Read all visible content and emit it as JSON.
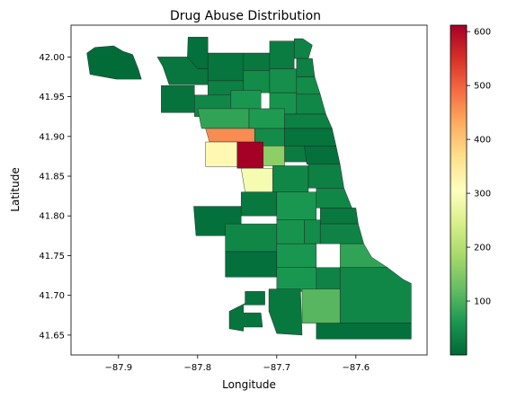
{
  "chart_data": {
    "type": "choropleth",
    "title": "Drug Abuse Distribution",
    "xlabel": "Longitude",
    "ylabel": "Latitude",
    "xlim": [
      -87.96,
      -87.51
    ],
    "ylim": [
      41.625,
      42.04
    ],
    "x_ticks": [
      -87.9,
      -87.8,
      -87.7,
      -87.6
    ],
    "y_ticks": [
      41.65,
      41.7,
      41.75,
      41.8,
      41.85,
      41.9,
      41.95,
      42.0
    ],
    "colorbar": {
      "colormap": "RdYlGn_r",
      "range": [
        0,
        612
      ],
      "ticks": [
        100,
        200,
        300,
        400,
        500,
        600
      ]
    },
    "regions": [
      {
        "id": "ohare",
        "value": 5,
        "poly": [
          [
            -87.94,
            42.005
          ],
          [
            -87.93,
            42.012
          ],
          [
            -87.906,
            42.014
          ],
          [
            -87.894,
            42.007
          ],
          [
            -87.882,
            42.003
          ],
          [
            -87.875,
            41.985
          ],
          [
            -87.871,
            41.972
          ],
          [
            -87.903,
            41.972
          ],
          [
            -87.936,
            41.978
          ]
        ]
      },
      {
        "id": "edison-park",
        "value": 10,
        "poly": [
          [
            -87.812,
            42.025
          ],
          [
            -87.787,
            42.025
          ],
          [
            -87.787,
            41.985
          ],
          [
            -87.8,
            41.985
          ],
          [
            -87.813,
            42.0
          ]
        ]
      },
      {
        "id": "norwood-park",
        "value": 18,
        "poly": [
          [
            -87.851,
            42.0
          ],
          [
            -87.813,
            42.0
          ],
          [
            -87.8,
            41.985
          ],
          [
            -87.787,
            41.985
          ],
          [
            -87.787,
            41.965
          ],
          [
            -87.836,
            41.965
          ],
          [
            -87.844,
            41.988
          ]
        ]
      },
      {
        "id": "dunning",
        "value": 14,
        "poly": [
          [
            -87.846,
            41.964
          ],
          [
            -87.804,
            41.964
          ],
          [
            -87.804,
            41.93
          ],
          [
            -87.846,
            41.93
          ]
        ]
      },
      {
        "id": "forest-glen",
        "value": 16,
        "poly": [
          [
            -87.787,
            42.005
          ],
          [
            -87.742,
            42.005
          ],
          [
            -87.742,
            41.97
          ],
          [
            -87.787,
            41.97
          ]
        ]
      },
      {
        "id": "sauganash",
        "value": 20,
        "poly": [
          [
            -87.742,
            42.005
          ],
          [
            -87.709,
            42.005
          ],
          [
            -87.709,
            41.983
          ],
          [
            -87.742,
            41.983
          ]
        ]
      },
      {
        "id": "west-ridge",
        "value": 25,
        "poly": [
          [
            -87.709,
            42.02
          ],
          [
            -87.678,
            42.02
          ],
          [
            -87.678,
            41.985
          ],
          [
            -87.709,
            41.985
          ]
        ]
      },
      {
        "id": "rogers-park",
        "value": 35,
        "poly": [
          [
            -87.678,
            42.023
          ],
          [
            -87.667,
            42.023
          ],
          [
            -87.655,
            42.015
          ],
          [
            -87.66,
            41.998
          ],
          [
            -87.678,
            41.998
          ]
        ]
      },
      {
        "id": "jefferson-park",
        "value": 30,
        "poly": [
          [
            -87.787,
            41.97
          ],
          [
            -87.742,
            41.97
          ],
          [
            -87.742,
            41.95
          ],
          [
            -87.787,
            41.95
          ]
        ]
      },
      {
        "id": "portage-park",
        "value": 40,
        "poly": [
          [
            -87.804,
            41.952
          ],
          [
            -87.758,
            41.952
          ],
          [
            -87.758,
            41.925
          ],
          [
            -87.804,
            41.925
          ]
        ]
      },
      {
        "id": "albany-park",
        "value": 45,
        "poly": [
          [
            -87.742,
            41.983
          ],
          [
            -87.709,
            41.983
          ],
          [
            -87.709,
            41.955
          ],
          [
            -87.742,
            41.955
          ]
        ]
      },
      {
        "id": "irving-park",
        "value": 60,
        "poly": [
          [
            -87.758,
            41.958
          ],
          [
            -87.72,
            41.958
          ],
          [
            -87.72,
            41.93
          ],
          [
            -87.758,
            41.93
          ]
        ]
      },
      {
        "id": "lincoln-square",
        "value": 50,
        "poly": [
          [
            -87.709,
            41.985
          ],
          [
            -87.675,
            41.985
          ],
          [
            -87.675,
            41.955
          ],
          [
            -87.709,
            41.955
          ]
        ]
      },
      {
        "id": "edgewater",
        "value": 30,
        "poly": [
          [
            -87.675,
            41.998
          ],
          [
            -87.655,
            41.998
          ],
          [
            -87.652,
            41.975
          ],
          [
            -87.675,
            41.975
          ]
        ]
      },
      {
        "id": "uptown",
        "value": 45,
        "poly": [
          [
            -87.675,
            41.975
          ],
          [
            -87.652,
            41.975
          ],
          [
            -87.645,
            41.953
          ],
          [
            -87.675,
            41.953
          ]
        ]
      },
      {
        "id": "north-center",
        "value": 55,
        "poly": [
          [
            -87.709,
            41.955
          ],
          [
            -87.675,
            41.955
          ],
          [
            -87.675,
            41.928
          ],
          [
            -87.709,
            41.928
          ]
        ]
      },
      {
        "id": "lakeview",
        "value": 40,
        "poly": [
          [
            -87.675,
            41.953
          ],
          [
            -87.645,
            41.953
          ],
          [
            -87.638,
            41.928
          ],
          [
            -87.675,
            41.928
          ]
        ]
      },
      {
        "id": "belmont-cragin",
        "value": 80,
        "poly": [
          [
            -87.8,
            41.935
          ],
          [
            -87.735,
            41.935
          ],
          [
            -87.735,
            41.91
          ],
          [
            -87.795,
            41.91
          ]
        ]
      },
      {
        "id": "logan-square",
        "value": 65,
        "poly": [
          [
            -87.735,
            41.935
          ],
          [
            -87.69,
            41.935
          ],
          [
            -87.69,
            41.91
          ],
          [
            -87.735,
            41.91
          ]
        ]
      },
      {
        "id": "lincoln-park",
        "value": 30,
        "poly": [
          [
            -87.69,
            41.928
          ],
          [
            -87.638,
            41.928
          ],
          [
            -87.63,
            41.91
          ],
          [
            -87.69,
            41.91
          ]
        ]
      },
      {
        "id": "austin",
        "value": 460,
        "poly": [
          [
            -87.79,
            41.91
          ],
          [
            -87.728,
            41.91
          ],
          [
            -87.728,
            41.893
          ],
          [
            -87.785,
            41.893
          ]
        ]
      },
      {
        "id": "west-town",
        "value": 45,
        "poly": [
          [
            -87.728,
            41.91
          ],
          [
            -87.69,
            41.91
          ],
          [
            -87.69,
            41.885
          ],
          [
            -87.728,
            41.885
          ]
        ]
      },
      {
        "id": "near-north",
        "value": 15,
        "poly": [
          [
            -87.69,
            41.91
          ],
          [
            -87.63,
            41.91
          ],
          [
            -87.625,
            41.888
          ],
          [
            -87.69,
            41.888
          ]
        ]
      },
      {
        "id": "austin-south",
        "value": 320,
        "poly": [
          [
            -87.79,
            41.893
          ],
          [
            -87.75,
            41.893
          ],
          [
            -87.75,
            41.862
          ],
          [
            -87.79,
            41.862
          ]
        ]
      },
      {
        "id": "west-garfield-park",
        "value": 612,
        "poly": [
          [
            -87.75,
            41.893
          ],
          [
            -87.717,
            41.893
          ],
          [
            -87.717,
            41.86
          ],
          [
            -87.75,
            41.86
          ]
        ]
      },
      {
        "id": "east-garfield-park",
        "value": 160,
        "poly": [
          [
            -87.717,
            41.888
          ],
          [
            -87.69,
            41.888
          ],
          [
            -87.69,
            41.863
          ],
          [
            -87.717,
            41.863
          ]
        ]
      },
      {
        "id": "near-west-side",
        "value": 25,
        "poly": [
          [
            -87.69,
            41.888
          ],
          [
            -87.665,
            41.888
          ],
          [
            -87.662,
            41.868
          ],
          [
            -87.69,
            41.868
          ]
        ]
      },
      {
        "id": "loop",
        "value": 10,
        "poly": [
          [
            -87.665,
            41.888
          ],
          [
            -87.625,
            41.888
          ],
          [
            -87.62,
            41.865
          ],
          [
            -87.662,
            41.865
          ]
        ]
      },
      {
        "id": "north-lawndale",
        "value": 290,
        "poly": [
          [
            -87.745,
            41.86
          ],
          [
            -87.705,
            41.86
          ],
          [
            -87.705,
            41.83
          ],
          [
            -87.74,
            41.83
          ]
        ]
      },
      {
        "id": "lower-west-side",
        "value": 40,
        "poly": [
          [
            -87.705,
            41.863
          ],
          [
            -87.66,
            41.863
          ],
          [
            -87.66,
            41.83
          ],
          [
            -87.705,
            41.83
          ]
        ]
      },
      {
        "id": "near-south-side",
        "value": 30,
        "poly": [
          [
            -87.66,
            41.865
          ],
          [
            -87.62,
            41.865
          ],
          [
            -87.615,
            41.835
          ],
          [
            -87.66,
            41.835
          ]
        ]
      },
      {
        "id": "archer-heights",
        "value": 20,
        "poly": [
          [
            -87.745,
            41.83
          ],
          [
            -87.7,
            41.83
          ],
          [
            -87.7,
            41.8
          ],
          [
            -87.745,
            41.8
          ]
        ]
      },
      {
        "id": "mckinley-park",
        "value": 60,
        "poly": [
          [
            -87.7,
            41.83
          ],
          [
            -87.65,
            41.83
          ],
          [
            -87.65,
            41.795
          ],
          [
            -87.7,
            41.795
          ]
        ]
      },
      {
        "id": "douglas",
        "value": 40,
        "poly": [
          [
            -87.65,
            41.835
          ],
          [
            -87.615,
            41.835
          ],
          [
            -87.605,
            41.81
          ],
          [
            -87.65,
            41.81
          ]
        ]
      },
      {
        "id": "garfield-ridge",
        "value": 10,
        "poly": [
          [
            -87.805,
            41.812
          ],
          [
            -87.745,
            41.812
          ],
          [
            -87.745,
            41.775
          ],
          [
            -87.802,
            41.775
          ]
        ]
      },
      {
        "id": "new-city",
        "value": 55,
        "poly": [
          [
            -87.7,
            41.795
          ],
          [
            -87.665,
            41.795
          ],
          [
            -87.665,
            41.765
          ],
          [
            -87.7,
            41.765
          ]
        ]
      },
      {
        "id": "fuller-park",
        "value": 45,
        "poly": [
          [
            -87.665,
            41.795
          ],
          [
            -87.645,
            41.795
          ],
          [
            -87.645,
            41.765
          ],
          [
            -87.665,
            41.765
          ]
        ]
      },
      {
        "id": "kenwood",
        "value": 20,
        "poly": [
          [
            -87.645,
            41.81
          ],
          [
            -87.6,
            41.81
          ],
          [
            -87.597,
            41.79
          ],
          [
            -87.645,
            41.79
          ]
        ]
      },
      {
        "id": "west-lawn",
        "value": 40,
        "poly": [
          [
            -87.765,
            41.79
          ],
          [
            -87.7,
            41.79
          ],
          [
            -87.7,
            41.755
          ],
          [
            -87.765,
            41.755
          ]
        ]
      },
      {
        "id": "englewood",
        "value": 60,
        "poly": [
          [
            -87.7,
            41.765
          ],
          [
            -87.65,
            41.765
          ],
          [
            -87.65,
            41.735
          ],
          [
            -87.7,
            41.735
          ]
        ]
      },
      {
        "id": "woodlawn",
        "value": 35,
        "poly": [
          [
            -87.645,
            41.79
          ],
          [
            -87.597,
            41.79
          ],
          [
            -87.59,
            41.765
          ],
          [
            -87.645,
            41.765
          ]
        ]
      },
      {
        "id": "south-shore",
        "value": 80,
        "poly": [
          [
            -87.62,
            41.765
          ],
          [
            -87.59,
            41.765
          ],
          [
            -87.58,
            41.748
          ],
          [
            -87.56,
            41.735
          ],
          [
            -87.62,
            41.735
          ]
        ]
      },
      {
        "id": "ashburn",
        "value": 10,
        "poly": [
          [
            -87.765,
            41.755
          ],
          [
            -87.7,
            41.755
          ],
          [
            -87.7,
            41.723
          ],
          [
            -87.765,
            41.723
          ]
        ]
      },
      {
        "id": "chatham",
        "value": 35,
        "poly": [
          [
            -87.65,
            41.735
          ],
          [
            -87.62,
            41.735
          ],
          [
            -87.62,
            41.705
          ],
          [
            -87.65,
            41.705
          ]
        ]
      },
      {
        "id": "south-chicago",
        "value": 40,
        "poly": [
          [
            -87.62,
            41.735
          ],
          [
            -87.56,
            41.735
          ],
          [
            -87.54,
            41.72
          ],
          [
            -87.53,
            41.715
          ],
          [
            -87.53,
            41.665
          ],
          [
            -87.62,
            41.665
          ]
        ]
      },
      {
        "id": "auburn-gresham",
        "value": 60,
        "poly": [
          [
            -87.7,
            41.735
          ],
          [
            -87.65,
            41.735
          ],
          [
            -87.65,
            41.705
          ],
          [
            -87.7,
            41.705
          ]
        ]
      },
      {
        "id": "mount-greenwood",
        "value": 15,
        "poly": [
          [
            -87.74,
            41.705
          ],
          [
            -87.715,
            41.705
          ],
          [
            -87.715,
            41.688
          ],
          [
            -87.742,
            41.688
          ],
          [
            -87.742,
            41.678
          ],
          [
            -87.72,
            41.678
          ],
          [
            -87.718,
            41.66
          ],
          [
            -87.742,
            41.66
          ],
          [
            -87.742,
            41.655
          ],
          [
            -87.76,
            41.658
          ],
          [
            -87.76,
            41.68
          ],
          [
            -87.74,
            41.69
          ]
        ]
      },
      {
        "id": "beverly",
        "value": 20,
        "poly": [
          [
            -87.71,
            41.708
          ],
          [
            -87.67,
            41.708
          ],
          [
            -87.668,
            41.65
          ],
          [
            -87.7,
            41.652
          ],
          [
            -87.71,
            41.68
          ]
        ]
      },
      {
        "id": "roseland",
        "value": 110,
        "poly": [
          [
            -87.668,
            41.708
          ],
          [
            -87.62,
            41.708
          ],
          [
            -87.62,
            41.665
          ],
          [
            -87.668,
            41.665
          ]
        ]
      },
      {
        "id": "riverdale",
        "value": 10,
        "poly": [
          [
            -87.65,
            41.665
          ],
          [
            -87.53,
            41.665
          ],
          [
            -87.53,
            41.645
          ],
          [
            -87.65,
            41.645
          ]
        ]
      }
    ]
  }
}
